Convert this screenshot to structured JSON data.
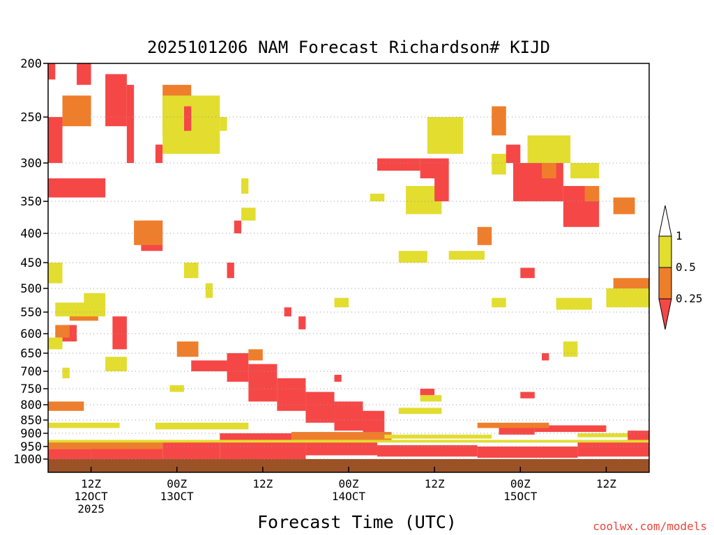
{
  "chart_data": {
    "type": "heatmap",
    "title": "2025101206 NAM Forecast Richardson# KIJD",
    "xlabel": "Forecast Time (UTC)",
    "ylabel": "",
    "credit": "coolwx.com/models",
    "y_axis": {
      "scale": "log-pressure",
      "range": [
        200,
        1000
      ],
      "ticks": [
        "200",
        "250",
        "300",
        "350",
        "400",
        "450",
        "500",
        "550",
        "600",
        "650",
        "700",
        "750",
        "800",
        "850",
        "900",
        "950",
        "1000"
      ]
    },
    "x_axis": {
      "range_hours": [
        0,
        84
      ],
      "ticks": [
        {
          "hour": 6,
          "label": "12Z",
          "sub1": "12OCT",
          "sub2": "2025"
        },
        {
          "hour": 18,
          "label": "00Z",
          "sub1": "13OCT",
          "sub2": ""
        },
        {
          "hour": 30,
          "label": "12Z",
          "sub1": "",
          "sub2": ""
        },
        {
          "hour": 42,
          "label": "00Z",
          "sub1": "14OCT",
          "sub2": ""
        },
        {
          "hour": 54,
          "label": "12Z",
          "sub1": "",
          "sub2": ""
        },
        {
          "hour": 66,
          "label": "00Z",
          "sub1": "15OCT",
          "sub2": ""
        },
        {
          "hour": 78,
          "label": "12Z",
          "sub1": "",
          "sub2": ""
        }
      ]
    },
    "gridlines": "dotted horizontal at major pressure levels",
    "colorbar": {
      "thresholds": [
        "1",
        "0.5",
        "0.25"
      ],
      "bins": [
        {
          "range": "0.5-1",
          "color": "#e2dd2f"
        },
        {
          "range": "0.25-0.5",
          "color": "#ee7e2b"
        },
        {
          "range": "<0.25",
          "color": "#f64747"
        }
      ]
    },
    "ground_color": "#9c5227",
    "regions": [
      {
        "cat": 3,
        "t0": 0,
        "t1": 84,
        "p0": 1000,
        "p1": 1020
      },
      {
        "cat": 2,
        "t0": 0,
        "t1": 6,
        "p0": 960,
        "p1": 1000
      },
      {
        "cat": 2,
        "t0": 6,
        "t1": 16,
        "p0": 945,
        "p1": 1000
      },
      {
        "cat": 2,
        "t0": 16,
        "t1": 24,
        "p0": 925,
        "p1": 1000
      },
      {
        "cat": 2,
        "t0": 24,
        "t1": 36,
        "p0": 900,
        "p1": 1000
      },
      {
        "cat": 2,
        "t0": 36,
        "t1": 46,
        "p0": 920,
        "p1": 985
      },
      {
        "cat": 2,
        "t0": 46,
        "t1": 60,
        "p0": 945,
        "p1": 990
      },
      {
        "cat": 2,
        "t0": 60,
        "t1": 74,
        "p0": 950,
        "p1": 995
      },
      {
        "cat": 2,
        "t0": 74,
        "t1": 84,
        "p0": 930,
        "p1": 990
      },
      {
        "cat": 2,
        "t0": 20,
        "t1": 25,
        "p0": 670,
        "p1": 700
      },
      {
        "cat": 2,
        "t0": 25,
        "t1": 28,
        "p0": 650,
        "p1": 730
      },
      {
        "cat": 2,
        "t0": 28,
        "t1": 32,
        "p0": 680,
        "p1": 790
      },
      {
        "cat": 2,
        "t0": 32,
        "t1": 36,
        "p0": 720,
        "p1": 820
      },
      {
        "cat": 2,
        "t0": 36,
        "t1": 40,
        "p0": 760,
        "p1": 860
      },
      {
        "cat": 2,
        "t0": 40,
        "t1": 44,
        "p0": 790,
        "p1": 890
      },
      {
        "cat": 2,
        "t0": 44,
        "t1": 47,
        "p0": 820,
        "p1": 910
      },
      {
        "cat": 2,
        "t0": 0,
        "t1": 8,
        "p0": 320,
        "p1": 345
      },
      {
        "cat": 2,
        "t0": 0,
        "t1": 2,
        "p0": 250,
        "p1": 300
      },
      {
        "cat": 2,
        "t0": 8,
        "t1": 11,
        "p0": 210,
        "p1": 260
      },
      {
        "cat": 2,
        "t0": 11,
        "t1": 12,
        "p0": 220,
        "p1": 300
      },
      {
        "cat": 2,
        "t0": 13,
        "t1": 16,
        "p0": 380,
        "p1": 430
      },
      {
        "cat": 2,
        "t0": 46,
        "t1": 52,
        "p0": 295,
        "p1": 310
      },
      {
        "cat": 2,
        "t0": 52,
        "t1": 56,
        "p0": 295,
        "p1": 320
      },
      {
        "cat": 2,
        "t0": 65,
        "t1": 72,
        "p0": 300,
        "p1": 350
      },
      {
        "cat": 2,
        "t0": 72,
        "t1": 77,
        "p0": 330,
        "p1": 390
      },
      {
        "cat": 2,
        "t0": 66,
        "t1": 68,
        "p0": 460,
        "p1": 480
      },
      {
        "cat": 2,
        "t0": 9,
        "t1": 11,
        "p0": 560,
        "p1": 640
      },
      {
        "cat": 2,
        "t0": 2,
        "t1": 4,
        "p0": 580,
        "p1": 620
      },
      {
        "cat": 2,
        "t0": 63,
        "t1": 68,
        "p0": 875,
        "p1": 905
      },
      {
        "cat": 2,
        "t0": 68,
        "t1": 78,
        "p0": 870,
        "p1": 895
      },
      {
        "cat": 1,
        "t0": 0,
        "t1": 16,
        "p0": 930,
        "p1": 960
      },
      {
        "cat": 1,
        "t0": 34,
        "t1": 48,
        "p0": 895,
        "p1": 925
      },
      {
        "cat": 1,
        "t0": 60,
        "t1": 70,
        "p0": 860,
        "p1": 880
      },
      {
        "cat": 1,
        "t0": 0,
        "t1": 5,
        "p0": 790,
        "p1": 820
      },
      {
        "cat": 1,
        "t0": 2,
        "t1": 6,
        "p0": 230,
        "p1": 260
      },
      {
        "cat": 1,
        "t0": 16,
        "t1": 20,
        "p0": 220,
        "p1": 270
      },
      {
        "cat": 1,
        "t0": 12,
        "t1": 16,
        "p0": 380,
        "p1": 420
      },
      {
        "cat": 1,
        "t0": 18,
        "t1": 21,
        "p0": 620,
        "p1": 660
      },
      {
        "cat": 1,
        "t0": 28,
        "t1": 30,
        "p0": 640,
        "p1": 670
      },
      {
        "cat": 1,
        "t0": 62,
        "t1": 64,
        "p0": 240,
        "p1": 270
      },
      {
        "cat": 1,
        "t0": 79,
        "t1": 84,
        "p0": 480,
        "p1": 530
      },
      {
        "cat": 1,
        "t0": 79,
        "t1": 82,
        "p0": 345,
        "p1": 370
      },
      {
        "cat": 1,
        "t0": 75,
        "t1": 77,
        "p0": 330,
        "p1": 350
      },
      {
        "cat": 1,
        "t0": 69,
        "t1": 71,
        "p0": 300,
        "p1": 320
      },
      {
        "cat": 1,
        "t0": 60,
        "t1": 62,
        "p0": 390,
        "p1": 420
      },
      {
        "cat": 1,
        "t0": 1,
        "t1": 3,
        "p0": 580,
        "p1": 610
      },
      {
        "cat": 1,
        "t0": 3,
        "t1": 7,
        "p0": 540,
        "p1": 570
      },
      {
        "cat": 0,
        "t0": 0,
        "t1": 84,
        "p0": 925,
        "p1": 935
      },
      {
        "cat": 0,
        "t0": 47,
        "t1": 62,
        "p0": 905,
        "p1": 920
      },
      {
        "cat": 0,
        "t0": 74,
        "t1": 84,
        "p0": 900,
        "p1": 915
      },
      {
        "cat": 0,
        "t0": 0,
        "t1": 10,
        "p0": 860,
        "p1": 880
      },
      {
        "cat": 0,
        "t0": 15,
        "t1": 28,
        "p0": 860,
        "p1": 885
      },
      {
        "cat": 0,
        "t0": 17,
        "t1": 19,
        "p0": 740,
        "p1": 760
      },
      {
        "cat": 0,
        "t0": 1,
        "t1": 8,
        "p0": 530,
        "p1": 560
      },
      {
        "cat": 0,
        "t0": 0,
        "t1": 2,
        "p0": 610,
        "p1": 640
      },
      {
        "cat": 0,
        "t0": 5,
        "t1": 8,
        "p0": 510,
        "p1": 535
      },
      {
        "cat": 0,
        "t0": 16,
        "t1": 24,
        "p0": 230,
        "p1": 290
      },
      {
        "cat": 0,
        "t0": 24,
        "t1": 25,
        "p0": 250,
        "p1": 265
      },
      {
        "cat": 0,
        "t0": 53,
        "t1": 58,
        "p0": 250,
        "p1": 290
      },
      {
        "cat": 0,
        "t0": 50,
        "t1": 55,
        "p0": 330,
        "p1": 370
      },
      {
        "cat": 0,
        "t0": 45,
        "t1": 47,
        "p0": 340,
        "p1": 350
      },
      {
        "cat": 0,
        "t0": 62,
        "t1": 64,
        "p0": 290,
        "p1": 315
      },
      {
        "cat": 0,
        "t0": 67,
        "t1": 73,
        "p0": 270,
        "p1": 300
      },
      {
        "cat": 0,
        "t0": 73,
        "t1": 77,
        "p0": 300,
        "p1": 320
      },
      {
        "cat": 0,
        "t0": 56,
        "t1": 61,
        "p0": 430,
        "p1": 445
      },
      {
        "cat": 0,
        "t0": 49,
        "t1": 53,
        "p0": 430,
        "p1": 450
      },
      {
        "cat": 0,
        "t0": 40,
        "t1": 42,
        "p0": 520,
        "p1": 540
      },
      {
        "cat": 0,
        "t0": 62,
        "t1": 64,
        "p0": 520,
        "p1": 540
      },
      {
        "cat": 0,
        "t0": 71,
        "t1": 76,
        "p0": 520,
        "p1": 545
      },
      {
        "cat": 0,
        "t0": 78,
        "t1": 84,
        "p0": 500,
        "p1": 540
      },
      {
        "cat": 0,
        "t0": 0,
        "t1": 2,
        "p0": 450,
        "p1": 490
      },
      {
        "cat": 0,
        "t0": 19,
        "t1": 21,
        "p0": 450,
        "p1": 480
      },
      {
        "cat": 0,
        "t0": 22,
        "t1": 23,
        "p0": 490,
        "p1": 520
      },
      {
        "cat": 0,
        "t0": 27,
        "t1": 28,
        "p0": 320,
        "p1": 340
      },
      {
        "cat": 0,
        "t0": 27,
        "t1": 29,
        "p0": 360,
        "p1": 380
      },
      {
        "cat": 0,
        "t0": 72,
        "t1": 74,
        "p0": 620,
        "p1": 660
      },
      {
        "cat": 0,
        "t0": 49,
        "t1": 55,
        "p0": 810,
        "p1": 830
      },
      {
        "cat": 0,
        "t0": 52,
        "t1": 55,
        "p0": 770,
        "p1": 790
      },
      {
        "cat": 0,
        "t0": 2,
        "t1": 3,
        "p0": 690,
        "p1": 720
      },
      {
        "cat": 0,
        "t0": 8,
        "t1": 11,
        "p0": 660,
        "p1": 700
      },
      {
        "cat": 2,
        "t0": 0,
        "t1": 1,
        "p0": 200,
        "p1": 215
      },
      {
        "cat": 2,
        "t0": 4,
        "t1": 6,
        "p0": 200,
        "p1": 220
      },
      {
        "cat": 2,
        "t0": 15,
        "t1": 16,
        "p0": 280,
        "p1": 300
      },
      {
        "cat": 2,
        "t0": 19,
        "t1": 20,
        "p0": 240,
        "p1": 265
      },
      {
        "cat": 2,
        "t0": 26,
        "t1": 27,
        "p0": 380,
        "p1": 400
      },
      {
        "cat": 2,
        "t0": 25,
        "t1": 26,
        "p0": 450,
        "p1": 480
      },
      {
        "cat": 2,
        "t0": 33,
        "t1": 34,
        "p0": 540,
        "p1": 560
      },
      {
        "cat": 2,
        "t0": 35,
        "t1": 36,
        "p0": 560,
        "p1": 590
      },
      {
        "cat": 2,
        "t0": 40,
        "t1": 41,
        "p0": 710,
        "p1": 730
      },
      {
        "cat": 2,
        "t0": 54,
        "t1": 56,
        "p0": 320,
        "p1": 350
      },
      {
        "cat": 2,
        "t0": 64,
        "t1": 66,
        "p0": 280,
        "p1": 300
      },
      {
        "cat": 2,
        "t0": 69,
        "t1": 70,
        "p0": 650,
        "p1": 670
      },
      {
        "cat": 2,
        "t0": 66,
        "t1": 68,
        "p0": 760,
        "p1": 780
      },
      {
        "cat": 2,
        "t0": 52,
        "t1": 54,
        "p0": 750,
        "p1": 770
      },
      {
        "cat": 2,
        "t0": 81,
        "t1": 84,
        "p0": 890,
        "p1": 925
      }
    ]
  }
}
